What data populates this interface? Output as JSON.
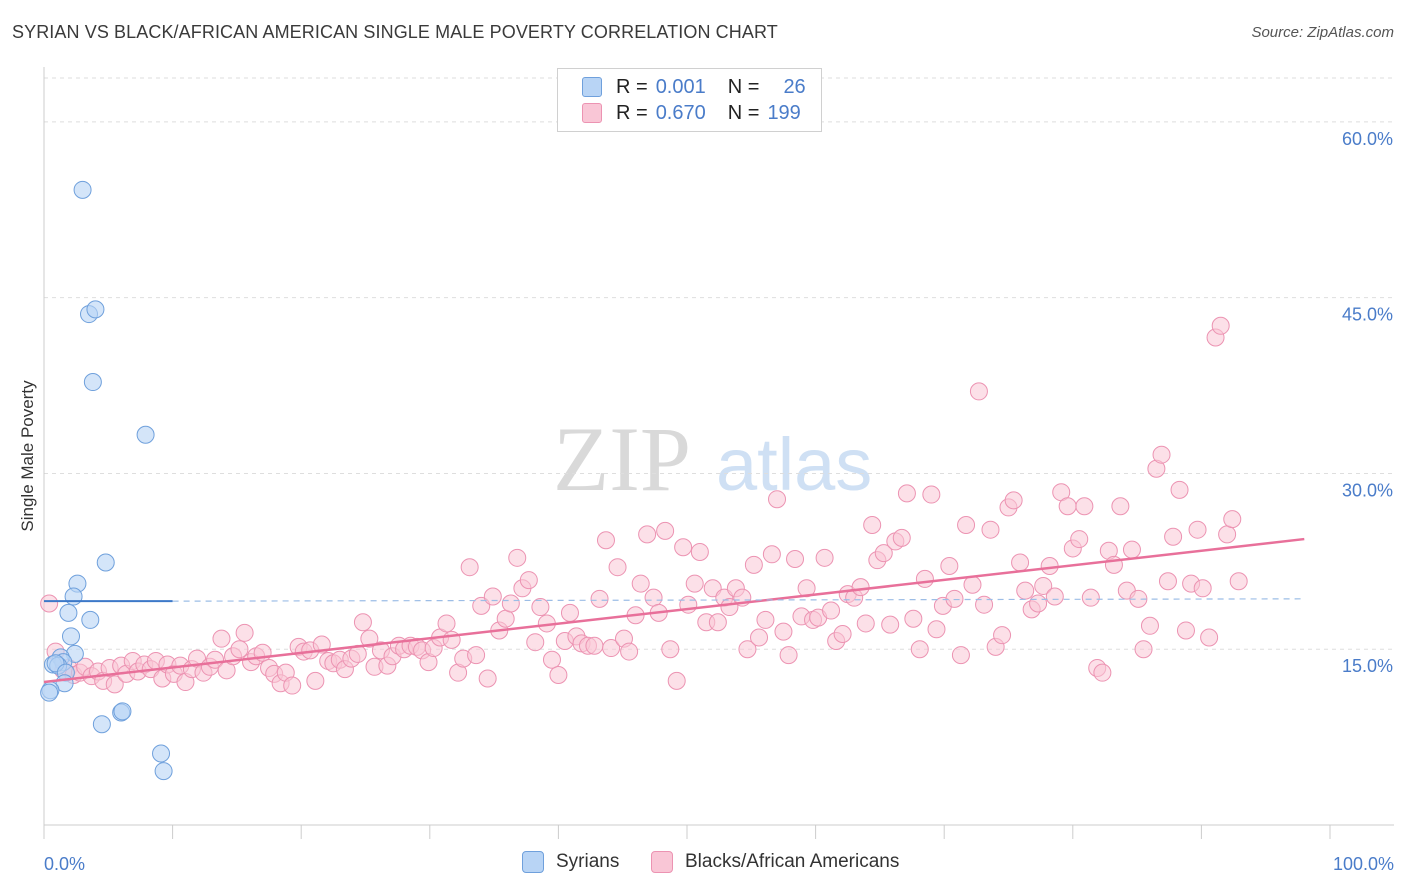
{
  "title": "SYRIAN VS BLACK/AFRICAN AMERICAN SINGLE MALE POVERTY CORRELATION CHART",
  "source": "Source: ZipAtlas.com",
  "watermark": {
    "zip": "ZIP",
    "atlas": "atlas"
  },
  "legend": {
    "rows": [
      {
        "r_label": "R =",
        "r_value": "0.001",
        "n_label": "N =",
        "n_value": "26"
      },
      {
        "r_label": "R =",
        "r_value": "0.670",
        "n_label": "N =",
        "n_value": "199"
      }
    ]
  },
  "bottom_legend": {
    "series1": "Syrians",
    "series2": "Blacks/African Americans"
  },
  "colors": {
    "syrians_fill": "#b8d4f5",
    "syrians_stroke": "#6fa0dc",
    "syrians_line": "#3c78c8",
    "black_fill": "#f9c6d6",
    "black_stroke": "#ec93b2",
    "black_line": "#e8709a",
    "tick_text": "#4a7cc9",
    "grid": "#dedede"
  },
  "chart_data": {
    "type": "scatter",
    "title": "SYRIAN VS BLACK/AFRICAN AMERICAN SINGLE MALE POVERTY CORRELATION CHART",
    "xlabel": "",
    "ylabel": "Single Male Poverty",
    "xlim": [
      0,
      100
    ],
    "ylim": [
      0,
      64
    ],
    "x_tick_labels": [
      "0.0%",
      "100.0%"
    ],
    "y_ticks": [
      15,
      30,
      45,
      60
    ],
    "y_tick_labels": [
      "15.0%",
      "30.0%",
      "45.0%",
      "60.0%"
    ],
    "grid": true,
    "legend_position": "top-center",
    "series": [
      {
        "name": "Syrians",
        "r": 0.001,
        "n": 26,
        "trend": {
          "x": [
            0,
            10
          ],
          "y": [
            19.1,
            19.1
          ],
          "dashed_extension_to": 98,
          "dashed_y": 19.3
        },
        "points": [
          [
            3.0,
            54.2
          ],
          [
            3.5,
            43.6
          ],
          [
            4.0,
            44.0
          ],
          [
            3.8,
            37.8
          ],
          [
            7.9,
            33.3
          ],
          [
            4.8,
            22.4
          ],
          [
            2.6,
            20.6
          ],
          [
            2.3,
            19.5
          ],
          [
            1.9,
            18.1
          ],
          [
            3.6,
            17.5
          ],
          [
            2.1,
            16.1
          ],
          [
            2.4,
            14.6
          ],
          [
            1.3,
            14.3
          ],
          [
            1.5,
            13.9
          ],
          [
            0.7,
            13.7
          ],
          [
            1.1,
            13.6
          ],
          [
            0.9,
            13.8
          ],
          [
            1.7,
            13.0
          ],
          [
            1.6,
            12.1
          ],
          [
            0.5,
            11.5
          ],
          [
            0.4,
            11.3
          ],
          [
            6.0,
            9.6
          ],
          [
            6.1,
            9.7
          ],
          [
            4.5,
            8.6
          ],
          [
            9.1,
            6.1
          ],
          [
            9.3,
            4.6
          ]
        ]
      },
      {
        "name": "Blacks/African Americans",
        "r": 0.67,
        "n": 199,
        "trend": {
          "x": [
            0,
            98
          ],
          "y": [
            12.2,
            24.4
          ]
        },
        "points": [
          [
            0.4,
            18.9
          ],
          [
            0.9,
            14.8
          ],
          [
            1.5,
            13.2
          ],
          [
            1.9,
            13.4
          ],
          [
            2.3,
            12.8
          ],
          [
            2.8,
            13.0
          ],
          [
            3.2,
            13.5
          ],
          [
            3.7,
            12.7
          ],
          [
            4.2,
            13.1
          ],
          [
            4.6,
            12.3
          ],
          [
            5.1,
            13.4
          ],
          [
            5.5,
            12.0
          ],
          [
            6.0,
            13.6
          ],
          [
            6.4,
            12.9
          ],
          [
            6.9,
            14.0
          ],
          [
            7.3,
            13.1
          ],
          [
            7.8,
            13.7
          ],
          [
            8.3,
            13.3
          ],
          [
            8.7,
            14.0
          ],
          [
            9.2,
            12.5
          ],
          [
            9.6,
            13.7
          ],
          [
            10.1,
            12.9
          ],
          [
            10.6,
            13.6
          ],
          [
            11.0,
            12.2
          ],
          [
            11.5,
            13.3
          ],
          [
            11.9,
            14.2
          ],
          [
            12.4,
            13.0
          ],
          [
            12.9,
            13.5
          ],
          [
            13.3,
            14.1
          ],
          [
            13.8,
            15.9
          ],
          [
            14.2,
            13.2
          ],
          [
            14.7,
            14.4
          ],
          [
            15.2,
            15.0
          ],
          [
            15.6,
            16.4
          ],
          [
            16.1,
            13.9
          ],
          [
            16.5,
            14.4
          ],
          [
            17.0,
            14.7
          ],
          [
            17.5,
            13.4
          ],
          [
            17.9,
            12.9
          ],
          [
            18.4,
            12.1
          ],
          [
            18.8,
            13.0
          ],
          [
            19.3,
            11.9
          ],
          [
            19.8,
            15.2
          ],
          [
            20.2,
            14.8
          ],
          [
            20.7,
            14.9
          ],
          [
            21.1,
            12.3
          ],
          [
            21.6,
            15.4
          ],
          [
            22.1,
            14.0
          ],
          [
            22.5,
            13.8
          ],
          [
            23.0,
            14.1
          ],
          [
            23.4,
            13.3
          ],
          [
            23.9,
            14.2
          ],
          [
            24.4,
            14.6
          ],
          [
            24.8,
            17.3
          ],
          [
            25.3,
            15.9
          ],
          [
            25.7,
            13.5
          ],
          [
            26.2,
            14.9
          ],
          [
            26.7,
            13.6
          ],
          [
            27.1,
            14.4
          ],
          [
            27.6,
            15.3
          ],
          [
            28.0,
            15.0
          ],
          [
            28.5,
            15.3
          ],
          [
            29.0,
            15.2
          ],
          [
            29.4,
            14.9
          ],
          [
            29.9,
            13.9
          ],
          [
            30.3,
            15.1
          ],
          [
            30.8,
            16.0
          ],
          [
            31.3,
            17.2
          ],
          [
            31.7,
            15.8
          ],
          [
            32.2,
            13.0
          ],
          [
            32.6,
            14.2
          ],
          [
            33.1,
            22.0
          ],
          [
            33.6,
            14.5
          ],
          [
            34.0,
            18.7
          ],
          [
            34.5,
            12.5
          ],
          [
            34.9,
            19.5
          ],
          [
            35.4,
            16.6
          ],
          [
            35.9,
            17.6
          ],
          [
            36.3,
            18.9
          ],
          [
            36.8,
            22.8
          ],
          [
            37.2,
            20.2
          ],
          [
            37.7,
            20.9
          ],
          [
            38.2,
            15.6
          ],
          [
            38.6,
            18.6
          ],
          [
            39.1,
            17.2
          ],
          [
            39.5,
            14.1
          ],
          [
            40.0,
            12.8
          ],
          [
            40.5,
            15.7
          ],
          [
            40.9,
            18.1
          ],
          [
            41.4,
            16.1
          ],
          [
            41.8,
            15.5
          ],
          [
            42.3,
            15.3
          ],
          [
            42.8,
            15.3
          ],
          [
            43.2,
            19.3
          ],
          [
            43.7,
            24.3
          ],
          [
            44.1,
            15.1
          ],
          [
            44.6,
            22.0
          ],
          [
            45.1,
            15.9
          ],
          [
            45.5,
            14.8
          ],
          [
            46.0,
            17.9
          ],
          [
            46.4,
            20.6
          ],
          [
            46.9,
            24.8
          ],
          [
            47.4,
            19.4
          ],
          [
            47.8,
            18.1
          ],
          [
            48.3,
            25.1
          ],
          [
            48.7,
            15.0
          ],
          [
            49.2,
            12.3
          ],
          [
            49.7,
            23.7
          ],
          [
            50.1,
            18.8
          ],
          [
            50.6,
            20.6
          ],
          [
            51.0,
            23.3
          ],
          [
            51.5,
            17.3
          ],
          [
            52.0,
            20.2
          ],
          [
            52.4,
            17.3
          ],
          [
            52.9,
            19.4
          ],
          [
            53.3,
            18.6
          ],
          [
            53.8,
            20.2
          ],
          [
            54.3,
            19.4
          ],
          [
            54.7,
            15.0
          ],
          [
            55.2,
            22.2
          ],
          [
            55.6,
            16.0
          ],
          [
            56.1,
            17.5
          ],
          [
            56.6,
            23.1
          ],
          [
            57.0,
            27.8
          ],
          [
            57.5,
            16.5
          ],
          [
            57.9,
            14.5
          ],
          [
            58.4,
            22.7
          ],
          [
            58.9,
            17.8
          ],
          [
            59.3,
            20.2
          ],
          [
            59.8,
            17.5
          ],
          [
            60.2,
            17.7
          ],
          [
            60.7,
            22.8
          ],
          [
            61.2,
            18.3
          ],
          [
            61.6,
            15.7
          ],
          [
            62.1,
            16.3
          ],
          [
            62.5,
            19.7
          ],
          [
            63.0,
            19.4
          ],
          [
            63.5,
            20.3
          ],
          [
            63.9,
            17.2
          ],
          [
            64.4,
            25.6
          ],
          [
            64.8,
            22.6
          ],
          [
            65.3,
            23.2
          ],
          [
            65.8,
            17.1
          ],
          [
            66.2,
            24.2
          ],
          [
            66.7,
            24.5
          ],
          [
            67.1,
            28.3
          ],
          [
            67.6,
            17.6
          ],
          [
            68.1,
            15.0
          ],
          [
            68.5,
            21.0
          ],
          [
            69.0,
            28.2
          ],
          [
            69.4,
            16.7
          ],
          [
            69.9,
            18.7
          ],
          [
            70.4,
            22.1
          ],
          [
            70.8,
            19.3
          ],
          [
            71.3,
            14.5
          ],
          [
            71.7,
            25.6
          ],
          [
            72.2,
            20.5
          ],
          [
            72.7,
            37.0
          ],
          [
            73.1,
            18.8
          ],
          [
            73.6,
            25.2
          ],
          [
            74.0,
            15.2
          ],
          [
            74.5,
            16.2
          ],
          [
            75.0,
            27.1
          ],
          [
            75.4,
            27.7
          ],
          [
            75.9,
            22.4
          ],
          [
            76.3,
            20.0
          ],
          [
            76.8,
            18.4
          ],
          [
            77.3,
            18.9
          ],
          [
            77.7,
            20.4
          ],
          [
            78.2,
            22.1
          ],
          [
            78.6,
            19.5
          ],
          [
            79.1,
            28.4
          ],
          [
            79.6,
            27.2
          ],
          [
            80.0,
            23.6
          ],
          [
            80.5,
            24.4
          ],
          [
            80.9,
            27.2
          ],
          [
            81.4,
            19.4
          ],
          [
            81.9,
            13.4
          ],
          [
            82.3,
            13.0
          ],
          [
            82.8,
            23.4
          ],
          [
            83.2,
            22.2
          ],
          [
            83.7,
            27.2
          ],
          [
            84.2,
            20.0
          ],
          [
            84.6,
            23.5
          ],
          [
            85.1,
            19.3
          ],
          [
            85.5,
            15.0
          ],
          [
            86.0,
            17.0
          ],
          [
            86.5,
            30.4
          ],
          [
            86.9,
            31.6
          ],
          [
            87.4,
            20.8
          ],
          [
            87.8,
            24.6
          ],
          [
            88.3,
            28.6
          ],
          [
            88.8,
            16.6
          ],
          [
            89.2,
            20.6
          ],
          [
            89.7,
            25.2
          ],
          [
            90.1,
            20.2
          ],
          [
            90.6,
            16.0
          ],
          [
            91.1,
            41.6
          ],
          [
            91.5,
            42.6
          ],
          [
            92.0,
            24.8
          ],
          [
            92.4,
            26.1
          ],
          [
            92.9,
            20.8
          ]
        ]
      }
    ]
  }
}
